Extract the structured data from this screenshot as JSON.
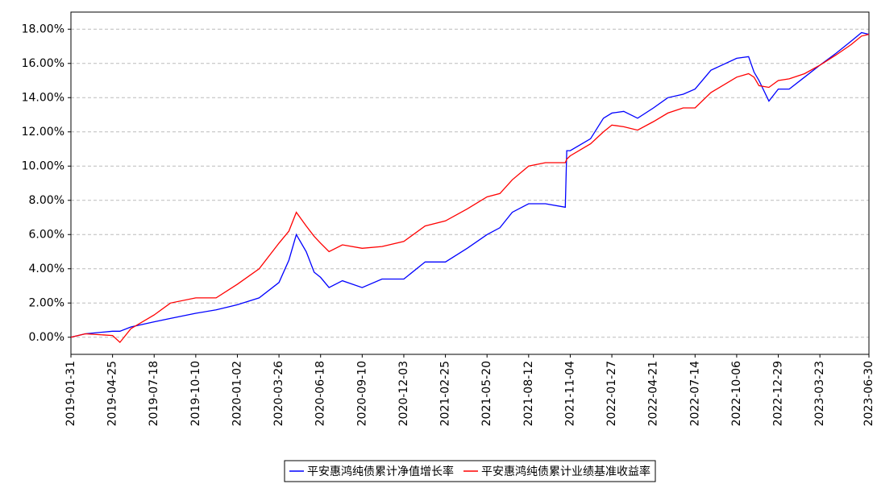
{
  "chart_data": {
    "type": "line",
    "x": [
      "2019-01-31",
      "2019-03-01",
      "2019-04-25",
      "2019-05-10",
      "2019-06-01",
      "2019-07-18",
      "2019-08-20",
      "2019-10-10",
      "2019-11-20",
      "2020-01-02",
      "2020-02-15",
      "2020-03-26",
      "2020-04-15",
      "2020-04-30",
      "2020-05-20",
      "2020-06-05",
      "2020-06-18",
      "2020-07-05",
      "2020-08-01",
      "2020-09-10",
      "2020-10-20",
      "2020-12-03",
      "2021-01-15",
      "2021-02-25",
      "2021-04-10",
      "2021-05-20",
      "2021-06-15",
      "2021-07-10",
      "2021-08-12",
      "2021-09-15",
      "2021-10-25",
      "2021-10-28",
      "2021-11-04",
      "2021-12-15",
      "2022-01-10",
      "2022-01-27",
      "2022-02-20",
      "2022-03-20",
      "2022-04-21",
      "2022-05-20",
      "2022-06-20",
      "2022-07-14",
      "2022-08-15",
      "2022-10-06",
      "2022-10-30",
      "2022-11-10",
      "2022-11-20",
      "2022-12-10",
      "2022-12-29",
      "2023-01-20",
      "2023-02-20",
      "2023-03-23",
      "2023-04-25",
      "2023-05-25",
      "2023-06-15",
      "2023-06-30"
    ],
    "series": [
      {
        "name": "平安惠鸿纯债累计净值增长率",
        "color": "#0000ff",
        "values": [
          0.0,
          0.2,
          0.35,
          0.35,
          0.6,
          0.9,
          1.1,
          1.4,
          1.6,
          1.9,
          2.3,
          3.2,
          4.5,
          6.0,
          5.0,
          3.8,
          3.5,
          2.9,
          3.3,
          2.9,
          3.4,
          3.4,
          4.4,
          4.4,
          5.2,
          6.0,
          6.4,
          7.3,
          7.8,
          7.8,
          7.6,
          10.9,
          10.9,
          11.6,
          12.8,
          13.1,
          13.2,
          12.8,
          13.4,
          14.0,
          14.2,
          14.5,
          15.6,
          16.3,
          16.4,
          15.5,
          15.0,
          13.8,
          14.5,
          14.5,
          15.2,
          15.9,
          16.6,
          17.3,
          17.8,
          17.7
        ]
      },
      {
        "name": "平安惠鸿纯债累计业绩基准收益率",
        "color": "#ff0000",
        "values": [
          0.0,
          0.2,
          0.1,
          -0.3,
          0.5,
          1.3,
          2.0,
          2.3,
          2.3,
          3.1,
          4.0,
          5.5,
          6.2,
          7.3,
          6.5,
          5.9,
          5.5,
          5.0,
          5.4,
          5.2,
          5.3,
          5.6,
          6.5,
          6.8,
          7.5,
          8.2,
          8.4,
          9.2,
          10.0,
          10.2,
          10.2,
          10.4,
          10.6,
          11.3,
          12.0,
          12.4,
          12.3,
          12.1,
          12.6,
          13.1,
          13.4,
          13.4,
          14.3,
          15.2,
          15.4,
          15.2,
          14.7,
          14.6,
          15.0,
          15.1,
          15.4,
          15.9,
          16.5,
          17.1,
          17.6,
          17.7
        ]
      }
    ],
    "xlim": [
      "2019-01-31",
      "2023-06-30"
    ],
    "xticks": [
      "2019-01-31",
      "2019-04-25",
      "2019-07-18",
      "2019-10-10",
      "2020-01-02",
      "2020-03-26",
      "2020-06-18",
      "2020-09-10",
      "2020-12-03",
      "2021-02-25",
      "2021-05-20",
      "2021-08-12",
      "2021-11-04",
      "2022-01-27",
      "2022-04-21",
      "2022-07-14",
      "2022-10-06",
      "2022-12-29",
      "2023-03-23",
      "2023-06-30"
    ],
    "ylim": [
      -1.0,
      19.0
    ],
    "yticks": [
      {
        "value": 0,
        "label": "0.00%"
      },
      {
        "value": 2,
        "label": "2.00%"
      },
      {
        "value": 4,
        "label": "4.00%"
      },
      {
        "value": 6,
        "label": "6.00%"
      },
      {
        "value": 8,
        "label": "8.00%"
      },
      {
        "value": 10,
        "label": "10.00%"
      },
      {
        "value": 12,
        "label": "12.00%"
      },
      {
        "value": 14,
        "label": "14.00%"
      },
      {
        "value": 16,
        "label": "16.00%"
      },
      {
        "value": 18,
        "label": "18.00%"
      }
    ],
    "grid": true,
    "legend": "bottom"
  }
}
